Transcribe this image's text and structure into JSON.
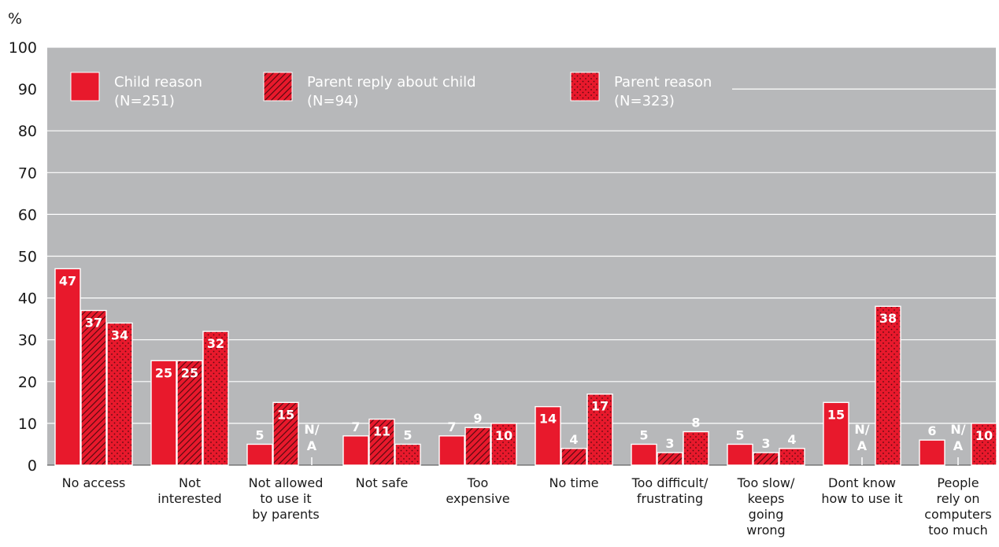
{
  "chart_data": {
    "type": "bar",
    "ylabel": "%",
    "ylim": [
      0,
      100
    ],
    "yticks": [
      0,
      10,
      20,
      30,
      40,
      50,
      60,
      70,
      80,
      90,
      100
    ],
    "grid": true,
    "legend_position": "top",
    "categories": [
      [
        "No access"
      ],
      [
        "Not",
        "interested"
      ],
      [
        "Not allowed",
        "to use it",
        "by parents"
      ],
      [
        "Not safe"
      ],
      [
        "Too",
        "expensive"
      ],
      [
        "No time"
      ],
      [
        "Too difficult/",
        "frustrating"
      ],
      [
        "Too slow/",
        "keeps",
        "going",
        "wrong"
      ],
      [
        "Dont know",
        "how to use it"
      ],
      [
        "People",
        "rely on",
        "computers",
        "too much"
      ]
    ],
    "series": [
      {
        "name": "Child reason",
        "name_sub": "(N=251)",
        "pattern": "solid",
        "values": [
          47,
          25,
          5,
          7,
          7,
          14,
          5,
          5,
          15,
          6
        ]
      },
      {
        "name": "Parent reply about child",
        "name_sub": "(N=94)",
        "pattern": "hatch",
        "values": [
          37,
          25,
          15,
          11,
          9,
          4,
          3,
          3,
          null,
          null
        ]
      },
      {
        "name": "Parent reason",
        "name_sub": "(N=323)",
        "pattern": "dots",
        "values": [
          34,
          32,
          null,
          5,
          10,
          17,
          8,
          4,
          38,
          10
        ]
      }
    ],
    "na_label": [
      "N/",
      "A"
    ],
    "colors": {
      "bar": "#e8192c",
      "background": "#b7b8ba",
      "grid": "#ffffff",
      "text": "#1a1a1a",
      "label": "#ffffff"
    }
  }
}
